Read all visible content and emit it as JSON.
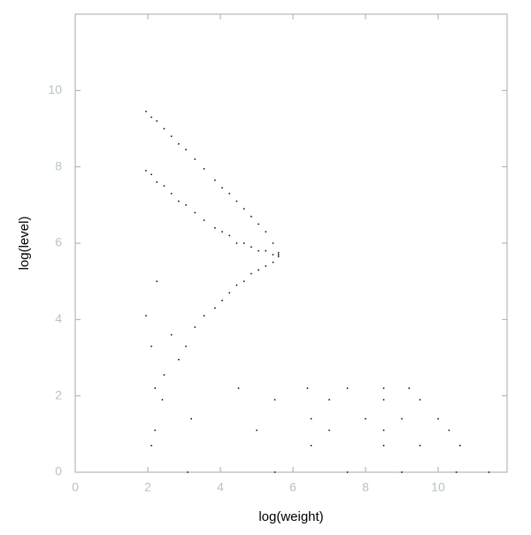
{
  "chart_data": {
    "type": "scatter",
    "x_label": "log(weight)",
    "y_label": "log(level)",
    "xlim": [
      0,
      11.9
    ],
    "ylim": [
      0,
      12
    ],
    "xticks": [
      0,
      2,
      4,
      6,
      8,
      10
    ],
    "yticks": [
      0,
      2,
      4,
      6,
      8,
      10
    ],
    "color": "#000000",
    "x": [
      1.95,
      1.95,
      1.95,
      2.1,
      2.1,
      2.1,
      2.25,
      2.25,
      2.25,
      2.45,
      2.45,
      2.45,
      2.65,
      2.65,
      2.65,
      2.85,
      2.85,
      2.85,
      3.05,
      3.05,
      3.05,
      3.3,
      3.3,
      3.3,
      3.55,
      3.55,
      3.55,
      3.85,
      3.85,
      3.85,
      4.05,
      4.05,
      4.05,
      4.25,
      4.25,
      4.25,
      4.45,
      4.45,
      4.45,
      4.65,
      4.65,
      4.65,
      4.85,
      4.85,
      4.85,
      5.05,
      5.05,
      5.05,
      5.25,
      5.25,
      5.25,
      5.45,
      5.45,
      5.45,
      5.6,
      5.6,
      5.6,
      2.2,
      4.5,
      6.4,
      7.5,
      8.5,
      9.2,
      2.4,
      5.5,
      7.0,
      8.5,
      9.5,
      3.2,
      6.5,
      8.0,
      9.0,
      10.0,
      2.2,
      5.0,
      7.0,
      8.5,
      10.3,
      2.1,
      6.5,
      8.5,
      9.5,
      10.6,
      3.1,
      5.5,
      7.5,
      9.0,
      10.5,
      11.4
    ],
    "y": [
      9.45,
      7.9,
      4.1,
      9.3,
      7.8,
      3.3,
      9.2,
      7.6,
      5.0,
      9.0,
      7.5,
      2.55,
      8.8,
      7.3,
      3.6,
      8.6,
      7.1,
      2.95,
      8.45,
      7.0,
      3.3,
      8.2,
      6.8,
      3.8,
      7.95,
      6.6,
      4.1,
      7.65,
      6.4,
      4.3,
      7.45,
      6.3,
      4.5,
      7.3,
      6.2,
      4.7,
      7.1,
      6.0,
      4.9,
      6.9,
      6.0,
      5.0,
      6.7,
      5.9,
      5.2,
      6.5,
      5.8,
      5.3,
      6.3,
      5.8,
      5.4,
      6.0,
      5.7,
      5.5,
      5.75,
      5.7,
      5.65,
      2.2,
      2.2,
      2.2,
      2.2,
      2.2,
      2.2,
      1.9,
      1.9,
      1.9,
      1.9,
      1.9,
      1.4,
      1.4,
      1.4,
      1.4,
      1.4,
      1.1,
      1.1,
      1.1,
      1.1,
      1.1,
      0.7,
      0.7,
      0.7,
      0.7,
      0.7,
      0,
      0,
      0,
      0,
      0,
      0
    ]
  }
}
